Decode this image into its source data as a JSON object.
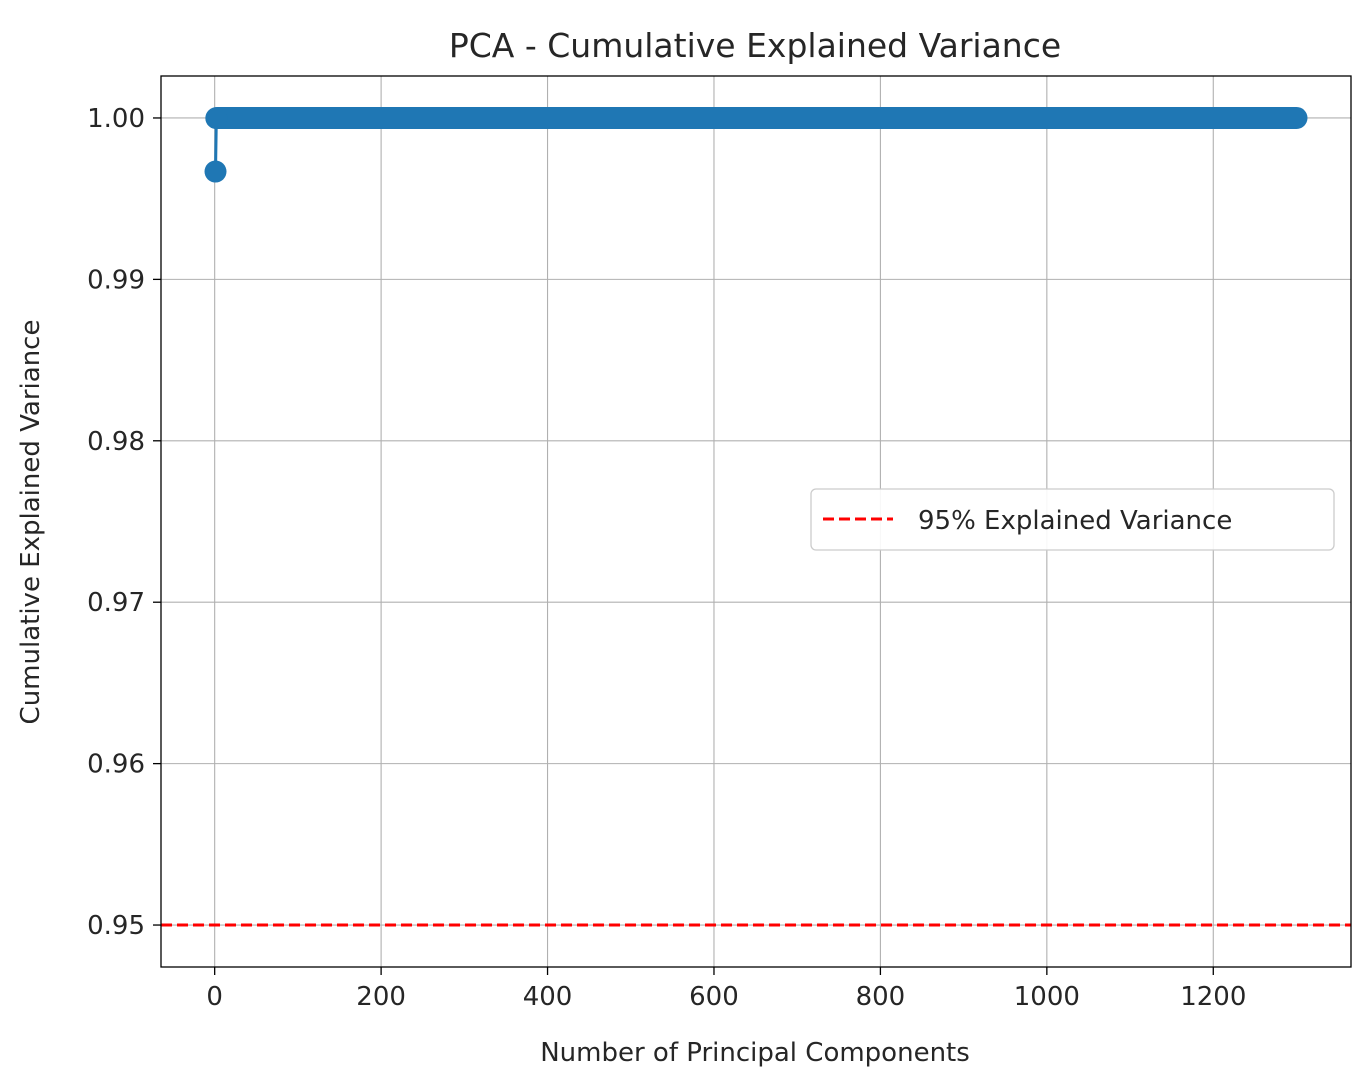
{
  "chart_data": {
    "type": "line",
    "title": "PCA - Cumulative Explained Variance",
    "xlabel": "Number of Principal Components",
    "ylabel": "Cumulative Explained Variance",
    "xlim": [
      -64.5,
      1365.5
    ],
    "ylim": [
      0.9474,
      1.0026
    ],
    "xticks": [
      0,
      200,
      400,
      600,
      800,
      1000,
      1200
    ],
    "xtick_labels": [
      "0",
      "200",
      "400",
      "600",
      "800",
      "1000",
      "1200"
    ],
    "yticks": [
      0.95,
      0.96,
      0.97,
      0.98,
      0.99,
      1.0
    ],
    "ytick_labels": [
      "0.95",
      "0.96",
      "0.97",
      "0.98",
      "0.99",
      "1.00"
    ],
    "grid": true,
    "series": [
      {
        "name": "",
        "color": "#1f77b4",
        "marker": "circle",
        "first_points": [
          {
            "x": 1,
            "y": 0.99668
          },
          {
            "x": 2,
            "y": 0.99999
          }
        ],
        "plateau": {
          "x_start": 3,
          "x_end": 1300,
          "y": 1.0
        }
      }
    ],
    "reference_lines": [
      {
        "orientation": "horizontal",
        "y": 0.95,
        "color": "#ff0000",
        "style": "dashed",
        "label": "95% Explained Variance"
      }
    ],
    "legend": {
      "placement": "center-right",
      "entries": [
        {
          "label": "95% Explained Variance",
          "color": "#ff0000",
          "style": "dashed"
        }
      ]
    }
  }
}
